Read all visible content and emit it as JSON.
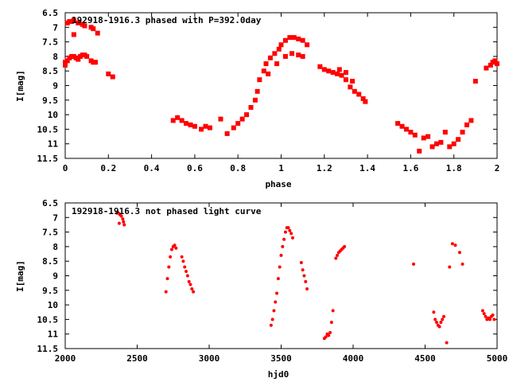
{
  "colors": {
    "points": "#ff0000",
    "axes": "#000000",
    "background": "#ffffff"
  },
  "chart_data": [
    {
      "type": "scatter",
      "title": "192918-1916.3 phased with P=392.0day",
      "xlabel": "phase",
      "ylabel": "I[mag]",
      "xlim": [
        0,
        2
      ],
      "ylim": [
        6.5,
        11.5
      ],
      "y_inverted": true,
      "grid": false,
      "marker": "square",
      "xticks": [
        0,
        0.2,
        0.4,
        0.6,
        0.8,
        1,
        1.2,
        1.4,
        1.6,
        1.8,
        2
      ],
      "xtick_labels": [
        "0",
        "0.2",
        "0.4",
        "0.6",
        "0.8",
        "1",
        "1.2",
        "1.4",
        "1.6",
        "1.8",
        "2"
      ],
      "yticks": [
        6.5,
        7,
        7.5,
        8,
        8.5,
        9,
        9.5,
        10,
        10.5,
        11,
        11.5
      ],
      "ytick_labels": [
        "6.5",
        "7",
        "7.5",
        "8",
        "8.5",
        "9",
        "9.5",
        "10",
        "10.5",
        "11",
        "11.5"
      ],
      "series": [
        {
          "x": [
            0.0,
            0.01,
            0.02,
            0.03,
            0.04,
            0.05,
            0.06,
            0.07,
            0.08,
            0.09,
            0.1,
            0.12,
            0.13,
            0.14,
            0.15,
            0.0,
            0.01,
            0.02,
            0.03,
            0.04,
            0.06,
            0.08,
            0.09,
            0.12,
            0.13,
            0.04,
            0.2,
            0.22,
            0.5,
            0.52,
            0.54,
            0.56,
            0.58,
            0.6,
            0.63,
            0.65,
            0.67,
            0.72,
            0.75,
            0.78,
            0.8,
            0.82,
            0.84,
            0.86,
            0.88,
            0.89,
            0.9,
            0.92,
            0.93,
            0.95,
            0.97,
            0.99,
            1.0,
            1.02,
            1.04,
            1.06,
            1.08,
            1.1,
            1.12,
            0.94,
            0.98,
            1.02,
            1.05,
            1.08,
            1.1,
            1.18,
            1.2,
            1.22,
            1.24,
            1.26,
            1.28,
            1.3,
            1.32,
            1.34,
            1.36,
            1.38,
            1.39,
            1.27,
            1.3,
            1.33,
            1.54,
            1.56,
            1.58,
            1.6,
            1.62,
            1.64,
            1.66,
            1.68,
            1.7,
            1.72,
            1.74,
            1.76,
            1.78,
            1.8,
            1.82,
            1.84,
            1.86,
            1.88,
            1.9,
            1.95,
            1.97,
            1.98,
            1.99,
            2.0
          ],
          "y": [
            8.3,
            8.15,
            8.05,
            8.0,
            8.0,
            8.05,
            8.1,
            8.0,
            7.95,
            7.95,
            8.0,
            8.15,
            8.2,
            8.2,
            7.2,
            8.2,
            6.85,
            6.8,
            6.8,
            6.75,
            6.85,
            6.9,
            6.95,
            7.0,
            7.05,
            7.25,
            8.6,
            8.7,
            10.2,
            10.1,
            10.2,
            10.3,
            10.35,
            10.4,
            10.5,
            10.4,
            10.45,
            10.15,
            10.65,
            10.45,
            10.3,
            10.15,
            10.0,
            9.75,
            9.5,
            9.2,
            8.8,
            8.5,
            8.25,
            8.05,
            7.9,
            7.75,
            7.6,
            7.45,
            7.35,
            7.35,
            7.4,
            7.45,
            7.6,
            8.6,
            8.25,
            8.0,
            7.9,
            7.95,
            8.0,
            8.35,
            8.45,
            8.5,
            8.55,
            8.6,
            8.65,
            8.8,
            9.05,
            9.2,
            9.3,
            9.45,
            9.55,
            8.45,
            8.55,
            8.85,
            10.3,
            10.4,
            10.5,
            10.6,
            10.7,
            11.25,
            10.8,
            10.75,
            11.1,
            11.0,
            10.95,
            10.6,
            11.1,
            11.0,
            10.85,
            10.6,
            10.35,
            10.2,
            8.85,
            8.4,
            8.3,
            8.2,
            8.15,
            8.25
          ]
        }
      ]
    },
    {
      "type": "scatter",
      "title": "192918-1916.3 not phased light curve",
      "xlabel": "hjd0",
      "ylabel": "I[mag]",
      "xlim": [
        2000,
        5000
      ],
      "ylim": [
        6.5,
        11.5
      ],
      "y_inverted": true,
      "grid": false,
      "marker": "dot",
      "xticks": [
        2000,
        2500,
        3000,
        3500,
        4000,
        4500,
        5000
      ],
      "xtick_labels": [
        "2000",
        "2500",
        "3000",
        "3500",
        "4000",
        "4500",
        "5000"
      ],
      "yticks": [
        6.5,
        7,
        7.5,
        8,
        8.5,
        9,
        9.5,
        10,
        10.5,
        11,
        11.5
      ],
      "ytick_labels": [
        "6.5",
        "7",
        "7.5",
        "8",
        "8.5",
        "9",
        "9.5",
        "10",
        "10.5",
        "11",
        "11.5"
      ],
      "series": [
        {
          "x": [
            2360,
            2370,
            2380,
            2390,
            2400,
            2405,
            2410,
            2375,
            2700,
            2710,
            2720,
            2730,
            2740,
            2750,
            2760,
            2770,
            2810,
            2820,
            2830,
            2840,
            2850,
            2860,
            2870,
            2880,
            2890,
            3430,
            3440,
            3450,
            3460,
            3470,
            3480,
            3490,
            3500,
            3510,
            3520,
            3530,
            3540,
            3550,
            3560,
            3570,
            3580,
            3640,
            3650,
            3660,
            3670,
            3680,
            3800,
            3810,
            3820,
            3830,
            3840,
            3850,
            3860,
            3880,
            3890,
            3900,
            3910,
            3920,
            3930,
            3940,
            4420,
            4560,
            4570,
            4580,
            4590,
            4600,
            4610,
            4620,
            4630,
            4650,
            4670,
            4690,
            4710,
            4740,
            4760,
            4900,
            4910,
            4920,
            4930,
            4940,
            4950,
            4960,
            4970,
            4980
          ],
          "y": [
            6.85,
            6.85,
            6.9,
            6.95,
            7.05,
            7.15,
            7.25,
            7.2,
            9.55,
            9.1,
            8.7,
            8.35,
            8.1,
            8.0,
            7.95,
            8.05,
            8.35,
            8.5,
            8.7,
            8.85,
            9.0,
            9.2,
            9.3,
            9.45,
            9.55,
            10.7,
            10.5,
            10.2,
            9.9,
            9.6,
            9.1,
            8.7,
            8.3,
            8.0,
            7.75,
            7.5,
            7.35,
            7.35,
            7.45,
            7.55,
            7.7,
            8.55,
            8.8,
            9.0,
            9.2,
            9.45,
            11.15,
            11.1,
            11.0,
            11.05,
            10.95,
            10.6,
            10.2,
            8.4,
            8.3,
            8.2,
            8.15,
            8.1,
            8.05,
            8.0,
            8.6,
            10.25,
            10.5,
            10.6,
            10.7,
            10.75,
            10.6,
            10.5,
            10.4,
            11.3,
            8.7,
            7.9,
            7.95,
            8.2,
            8.6,
            10.2,
            10.3,
            10.4,
            10.5,
            10.45,
            10.5,
            10.4,
            10.35,
            10.5
          ]
        }
      ]
    }
  ]
}
